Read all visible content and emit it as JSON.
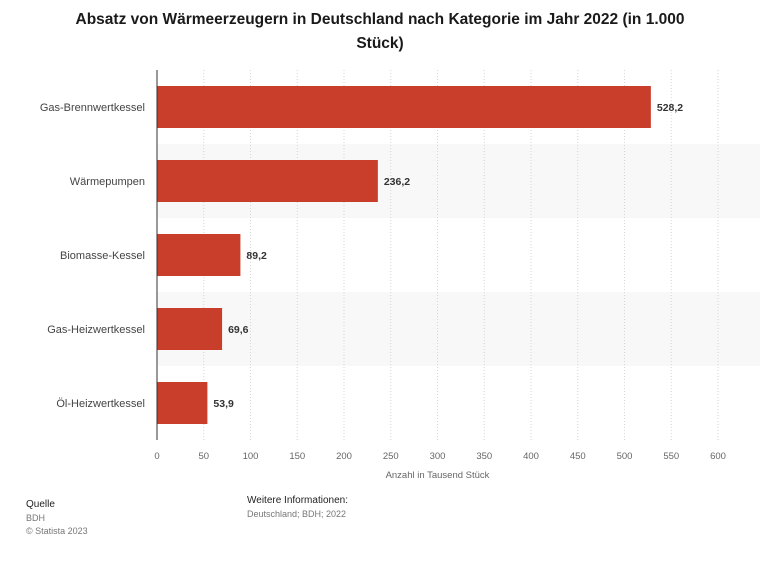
{
  "chart_data": {
    "type": "bar",
    "orientation": "horizontal",
    "title": "Absatz von Wärmeerzeugern in Deutschland nach Kategorie im Jahr 2022 (in 1.000 Stück)",
    "xlabel": "Anzahl in Tausend Stück",
    "ylabel": "",
    "categories": [
      "Gas-Brennwertkessel",
      "Wärmepumpen",
      "Biomasse-Kessel",
      "Gas-Heizwertkessel",
      "Öl-Heizwertkessel"
    ],
    "values": [
      528.2,
      236.2,
      89.2,
      69.6,
      53.9
    ],
    "value_labels": [
      "528,2",
      "236,2",
      "89,2",
      "69,6",
      "53,9"
    ],
    "xlim": [
      0,
      600
    ],
    "ticks": [
      0,
      50,
      100,
      150,
      200,
      250,
      300,
      350,
      400,
      450,
      500,
      550,
      600
    ],
    "grid": true,
    "bar_color": "#c83e2a"
  },
  "footer": {
    "source_label": "Quelle",
    "source_value": "BDH",
    "copyright": "© Statista 2023",
    "info_label": "Weitere Informationen:",
    "info_value": "Deutschland; BDH; 2022"
  }
}
